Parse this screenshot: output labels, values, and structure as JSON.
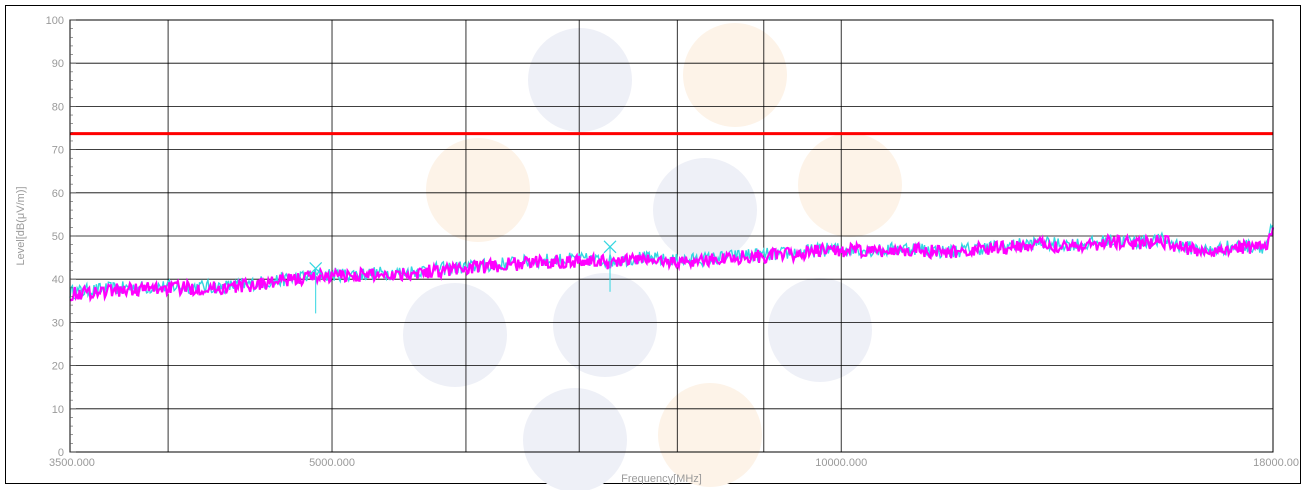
{
  "chart_data": {
    "type": "line",
    "title": "",
    "xlabel": "Frequency[MHz]",
    "ylabel": "Level[dB(μV/m)]",
    "x_scale": "log",
    "xlim": [
      3500,
      18000
    ],
    "ylim": [
      0,
      100
    ],
    "x_tick_labels": [
      "3500.000",
      "5000.000",
      "10000.000",
      "18000.00"
    ],
    "x_ticks": [
      3500,
      5000,
      10000,
      18000
    ],
    "x_grid": [
      3500,
      4000,
      5000,
      6000,
      7000,
      8000,
      9000,
      10000,
      18000
    ],
    "y_ticks": [
      0,
      10,
      20,
      30,
      40,
      50,
      60,
      70,
      80,
      90,
      100
    ],
    "grid": true,
    "limit_line": {
      "y": 73.7,
      "color": "#ff0000"
    },
    "series": [
      {
        "color": "#33d6e0",
        "x": [
          3500,
          3700,
          4000,
          4300,
          4600,
          4900,
          5200,
          5500,
          5800,
          6100,
          6400,
          6700,
          7000,
          7300,
          7600,
          7900,
          8200,
          8500,
          8800,
          9100,
          9400,
          9700,
          10000,
          10500,
          11000,
          11500,
          12000,
          12500,
          13000,
          13500,
          14000,
          14500,
          15000,
          15500,
          16000,
          16500,
          17000,
          17500,
          17800,
          18000
        ],
        "y": [
          37.0,
          37.8,
          38.3,
          38.2,
          39.5,
          41.0,
          41.2,
          41.6,
          42.4,
          43.0,
          43.8,
          44.4,
          44.6,
          44.2,
          45.0,
          44.3,
          44.5,
          45.0,
          45.6,
          45.7,
          46.1,
          46.8,
          47.0,
          46.6,
          47.3,
          46.3,
          47.1,
          47.6,
          48.3,
          48.1,
          48.2,
          49.0,
          48.6,
          49.1,
          47.4,
          46.6,
          47.6,
          47.7,
          47.5,
          52.5
        ]
      },
      {
        "color": "#ff00ff",
        "x": [
          3500,
          3700,
          4000,
          4300,
          4600,
          4900,
          5200,
          5500,
          5800,
          6100,
          6400,
          6700,
          7000,
          7300,
          7600,
          7900,
          8200,
          8500,
          8800,
          9100,
          9400,
          9700,
          10000,
          10500,
          11000,
          11500,
          12000,
          12500,
          13000,
          13500,
          14000,
          14500,
          15000,
          15500,
          16000,
          16500,
          17000,
          17500,
          17800,
          18000
        ],
        "y": [
          36.6,
          37.4,
          38.0,
          37.9,
          39.2,
          40.7,
          41.0,
          41.3,
          42.1,
          42.7,
          43.5,
          44.1,
          44.3,
          43.9,
          44.7,
          44.0,
          44.2,
          44.7,
          45.3,
          45.4,
          45.8,
          46.5,
          46.7,
          46.3,
          47.0,
          46.0,
          46.8,
          47.3,
          48.0,
          47.8,
          47.9,
          48.7,
          48.3,
          48.8,
          47.1,
          46.3,
          47.3,
          47.4,
          47.2,
          52.0
        ]
      }
    ],
    "markers": [
      {
        "x": 4890,
        "y": 42.5,
        "color": "#33d6e0"
      },
      {
        "x": 7300,
        "y": 47.5,
        "color": "#33d6e0"
      }
    ]
  }
}
